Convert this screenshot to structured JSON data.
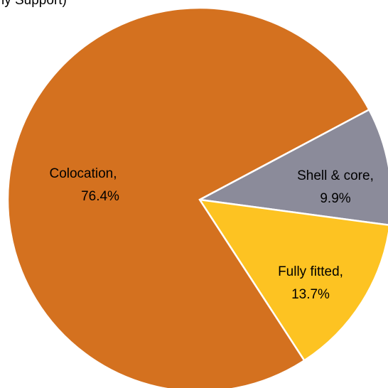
{
  "header_fragment": "ly Support)",
  "chart_data": {
    "type": "pie",
    "series": [
      {
        "name": "Colocation",
        "value": 76.4,
        "value_label": "76.4%",
        "color": "#D4711F"
      },
      {
        "name": "Shell & core",
        "value": 9.9,
        "value_label": "9.9%",
        "color": "#8B8B9A"
      },
      {
        "name": "Fully fitted",
        "value": 13.7,
        "value_label": "13.7%",
        "color": "#FDC322"
      }
    ],
    "start_angle_deg": 28,
    "direction": "clockwise-from-east-counter",
    "label_style": "name, value"
  }
}
